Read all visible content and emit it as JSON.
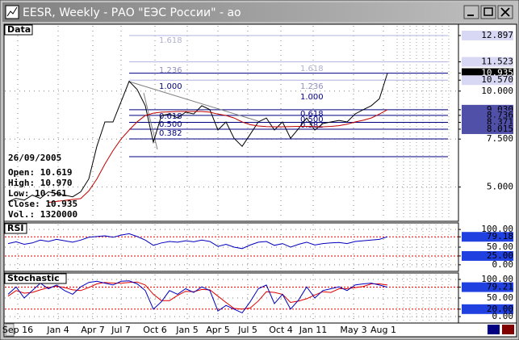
{
  "window": {
    "title": "EESR, Weekly - РАО \"ЕЭС России\" - ao"
  },
  "info": {
    "date": "26/09/2005",
    "open": "Open: 10.619",
    "high": "High: 10.970",
    "low": "Low: 10.561",
    "close": "Close: 10.935",
    "volume": "Vol.: 1320000"
  },
  "fib_labels": [
    "1.618",
    "1.236",
    "1.000",
    "0.618",
    "0.500",
    "0.382",
    "1.618",
    "1.236",
    "1.000",
    "0.618",
    "0.500",
    "0.382"
  ],
  "time_labels": [
    "Sep 16",
    "Jan 4",
    "Apr 7",
    "Jul 7",
    "Oct 6",
    "Jan 5",
    "Apr 5",
    "Jul 5",
    "Oct 4",
    "Jan 11",
    "May 3",
    "Aug 1"
  ],
  "chart_data": [
    {
      "type": "line",
      "title": "Data",
      "ylim": [
        3.3,
        13.4
      ],
      "yticks": [
        {
          "value": 12.897,
          "label": "12.897",
          "box": "light"
        },
        {
          "value": 11.523,
          "label": "11.523",
          "box": "light"
        },
        {
          "value": 10.935,
          "label": "10.935",
          "box": "dark"
        },
        {
          "value": 10.57,
          "label": "10.570",
          "box": "light"
        },
        {
          "value": 10,
          "label": "10.000"
        },
        {
          "value": 9.03,
          "label": "9.030",
          "box": "navy"
        },
        {
          "value": 8.736,
          "label": "8.736",
          "box": "navy"
        },
        {
          "value": 8.371,
          "label": "8.371",
          "box": "navy"
        },
        {
          "value": 8.015,
          "label": "8.015",
          "box": "navy"
        },
        {
          "value": 7.5,
          "label": "7.500"
        },
        {
          "value": 5,
          "label": "5.000"
        }
      ],
      "series": [
        {
          "color": "#000000",
          "values": [
            4.24,
            4.41,
            4.32,
            4.58,
            4.41,
            4.75,
            4.66,
            4.58,
            4.49,
            4.75,
            5.42,
            7.12,
            8.39,
            8.39,
            9.45,
            10.51,
            10.08,
            9.24,
            7.33,
            8.73,
            8.81,
            8.6,
            8.9,
            8.81,
            9.24,
            9.03,
            7.97,
            8.39,
            7.54,
            7.12,
            7.75,
            8.39,
            8.6,
            7.97,
            8.39,
            7.54,
            8.05,
            8.6,
            7.97,
            8.31,
            8.39,
            8.47,
            8.39,
            8.81,
            9.03,
            9.24,
            9.6,
            10.935
          ]
        },
        {
          "color": "#c00000",
          "values": [
            null,
            null,
            null,
            null,
            null,
            4.2,
            4.25,
            4.3,
            4.35,
            4.4,
            4.8,
            5.42,
            6.2,
            6.9,
            7.5,
            7.97,
            8.4,
            8.73,
            8.85,
            8.9,
            8.92,
            8.94,
            8.94,
            8.94,
            8.94,
            8.9,
            8.8,
            8.73,
            8.6,
            8.39,
            8.25,
            8.18,
            8.15,
            8.14,
            8.14,
            8.15,
            8.16,
            8.16,
            8.15,
            8.14,
            8.16,
            8.2,
            8.28,
            8.39,
            8.48,
            8.6,
            8.8,
            9.03
          ]
        }
      ]
    },
    {
      "type": "line",
      "title": "RSI",
      "ylim": [
        -14,
        114
      ],
      "yticks": [
        {
          "value": 100,
          "label": "100.00"
        },
        {
          "value": 79.18,
          "label": "79.18",
          "box": "blue"
        },
        {
          "value": 50,
          "label": "50.00"
        },
        {
          "value": 25,
          "label": "25.00",
          "box": "blue"
        },
        {
          "value": 0,
          "label": "0.00"
        }
      ],
      "series": [
        {
          "color": "#0000c0",
          "values": [
            60,
            65,
            58,
            62,
            70,
            66,
            72,
            68,
            64,
            70,
            78,
            80,
            82,
            78,
            84,
            88,
            80,
            70,
            55,
            62,
            66,
            64,
            68,
            65,
            70,
            66,
            52,
            58,
            50,
            46,
            56,
            64,
            66,
            55,
            60,
            50,
            58,
            64,
            56,
            60,
            62,
            63,
            60,
            66,
            68,
            70,
            72,
            79.18
          ]
        }
      ]
    },
    {
      "type": "line",
      "title": "Stochastic",
      "ylim": [
        -13,
        113
      ],
      "yticks": [
        {
          "value": 100,
          "label": "100.00"
        },
        {
          "value": 79.21,
          "label": "79.21",
          "box": "blue"
        },
        {
          "value": 50,
          "label": "50.00"
        },
        {
          "value": 20,
          "label": "20.00",
          "box": "blue"
        },
        {
          "value": 0,
          "label": "0.00"
        }
      ],
      "series": [
        {
          "color": "#e00000",
          "values": [
            55,
            70,
            63,
            65,
            72,
            78,
            82,
            78,
            72,
            70,
            78,
            88,
            92,
            90,
            90,
            92,
            93,
            85,
            60,
            43,
            43,
            57,
            68,
            67,
            73,
            72,
            55,
            38,
            22,
            20,
            23,
            42,
            67,
            65,
            60,
            38,
            42,
            48,
            58,
            67,
            65,
            75,
            75,
            78,
            81,
            88,
            88,
            85
          ]
        },
        {
          "color": "#0000c0",
          "values": [
            60,
            80,
            50,
            70,
            90,
            75,
            85,
            70,
            60,
            80,
            92,
            95,
            90,
            85,
            95,
            96,
            88,
            70,
            20,
            40,
            70,
            60,
            75,
            65,
            80,
            70,
            15,
            30,
            20,
            10,
            40,
            75,
            85,
            35,
            60,
            20,
            45,
            80,
            50,
            70,
            75,
            80,
            70,
            85,
            88,
            90,
            85,
            79.21
          ]
        }
      ]
    }
  ]
}
